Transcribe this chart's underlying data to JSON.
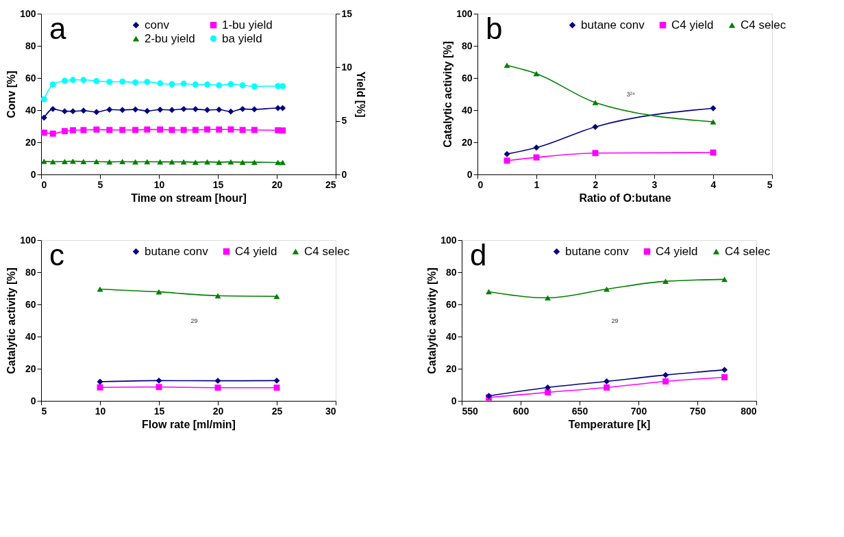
{
  "chart_data": [
    {
      "type": "line",
      "title": "a",
      "xlabel": "Time on stream [hour]",
      "ylabel": "Conv [%]",
      "y2label": "Yield [%]",
      "xlim": [
        0,
        25
      ],
      "xticks": [
        0,
        5,
        10,
        15,
        20,
        25
      ],
      "ylim": [
        0,
        100
      ],
      "yticks": [
        0,
        20,
        40,
        60,
        80,
        100
      ],
      "y2lim": [
        0,
        15
      ],
      "y2ticks": [
        0,
        5,
        10,
        15
      ],
      "grid": false,
      "legend": "top",
      "line_style": "solid",
      "x": [
        0.25,
        1,
        2,
        2.7,
        3.6,
        4.7,
        5.8,
        6.9,
        8,
        9,
        10.1,
        11.1,
        12.1,
        13.1,
        14.1,
        15.1,
        16.1,
        17.1,
        18.1,
        20.1,
        20.5
      ],
      "series": [
        {
          "name": "conv",
          "color": "#000080",
          "marker": "diamond",
          "values": [
            35.3,
            40.7,
            39.3,
            39.3,
            39.7,
            38.8,
            40.3,
            40.1,
            40.4,
            39.5,
            40.3,
            40.1,
            40.7,
            40.6,
            40.1,
            40.3,
            39.1,
            40.7,
            40.5,
            41.3,
            41.3
          ]
        },
        {
          "name": "1-bu yield",
          "color": "#ff00ff",
          "marker": "square",
          "axis": "y2",
          "values": [
            3.9,
            3.81,
            4.04,
            4.12,
            4.14,
            4.19,
            4.15,
            4.15,
            4.15,
            4.19,
            4.19,
            4.15,
            4.15,
            4.15,
            4.2,
            4.19,
            4.2,
            4.15,
            4.15,
            4.12,
            4.1
          ]
        },
        {
          "name": "2-bu yield",
          "color": "#008000",
          "marker": "triangle",
          "axis": "y2",
          "values": [
            1.22,
            1.19,
            1.2,
            1.24,
            1.2,
            1.2,
            1.17,
            1.2,
            1.17,
            1.19,
            1.17,
            1.17,
            1.17,
            1.14,
            1.17,
            1.14,
            1.17,
            1.14,
            1.14,
            1.12,
            1.12
          ]
        },
        {
          "name": "ba yield",
          "color": "#00ffff",
          "marker": "circle",
          "axis": "y2",
          "values": [
            7.02,
            8.4,
            8.74,
            8.82,
            8.82,
            8.72,
            8.64,
            8.66,
            8.59,
            8.64,
            8.5,
            8.42,
            8.47,
            8.39,
            8.39,
            8.32,
            8.42,
            8.32,
            8.22,
            8.25,
            8.24
          ]
        }
      ]
    },
    {
      "type": "line",
      "title": "b",
      "xlabel": "Ratio of O:butane",
      "ylabel": "Catalytic activity [%]",
      "xlim": [
        0,
        5
      ],
      "xticks": [
        0,
        1,
        2,
        3,
        4,
        5
      ],
      "ylim": [
        0,
        100
      ],
      "yticks": [
        0,
        20,
        40,
        60,
        80,
        100
      ],
      "grid": false,
      "legend": "top",
      "line_style": "solid",
      "annotations": [
        "3²⁴"
      ],
      "x": [
        0.5,
        1,
        2,
        4
      ],
      "series": [
        {
          "name": "butane conv",
          "color": "#000080",
          "marker": "diamond",
          "values": [
            12.7,
            16.7,
            29.6,
            41.2
          ]
        },
        {
          "name": "C4 yield",
          "color": "#ff00ff",
          "marker": "square",
          "values": [
            8.6,
            10.6,
            13.3,
            13.6
          ]
        },
        {
          "name": "C4 selec",
          "color": "#008000",
          "marker": "triangle",
          "values": [
            67.9,
            62.7,
            44.7,
            32.7
          ]
        }
      ]
    },
    {
      "type": "line",
      "title": "c",
      "xlabel": "Flow rate [ml/min]",
      "ylabel": "Catalytic activity [%]",
      "xlim": [
        5,
        30
      ],
      "xticks": [
        5,
        10,
        15,
        20,
        25,
        30
      ],
      "ylim": [
        0,
        100
      ],
      "yticks": [
        0,
        20,
        40,
        60,
        80,
        100
      ],
      "grid": false,
      "legend": "top",
      "line_style": "solid",
      "annotations": [
        "29"
      ],
      "x": [
        10,
        15,
        20,
        25
      ],
      "series": [
        {
          "name": "butane conv",
          "color": "#000080",
          "marker": "diamond",
          "values": [
            11.9,
            12.6,
            12.5,
            12.6
          ]
        },
        {
          "name": "C4 yield",
          "color": "#ff00ff",
          "marker": "square",
          "values": [
            8.4,
            8.6,
            8.2,
            8.2
          ]
        },
        {
          "name": "C4 selec",
          "color": "#008000",
          "marker": "triangle",
          "values": [
            69.5,
            67.8,
            65.4,
            65.0
          ]
        }
      ]
    },
    {
      "type": "line",
      "title": "d",
      "xlabel": "Temperature [k]",
      "ylabel": "Catalytic activity [%]",
      "xlim": [
        550,
        800
      ],
      "xticks": [
        550,
        600,
        650,
        700,
        750,
        800
      ],
      "ylim": [
        0,
        100
      ],
      "yticks": [
        0,
        20,
        40,
        60,
        80,
        100
      ],
      "grid": false,
      "legend": "top",
      "line_style": "solid",
      "annotations": [
        "29"
      ],
      "x": [
        573,
        623,
        673,
        723,
        773
      ],
      "series": [
        {
          "name": "butane conv",
          "color": "#000080",
          "marker": "diamond",
          "values": [
            3.1,
            8.3,
            12.1,
            16.1,
            19.3
          ]
        },
        {
          "name": "C4 yield",
          "color": "#ff00ff",
          "marker": "square",
          "values": [
            2.1,
            5.3,
            8.3,
            12.1,
            14.7
          ]
        },
        {
          "name": "C4 selec",
          "color": "#008000",
          "marker": "triangle",
          "values": [
            67.9,
            64.1,
            69.5,
            74.4,
            75.6
          ]
        }
      ]
    }
  ]
}
